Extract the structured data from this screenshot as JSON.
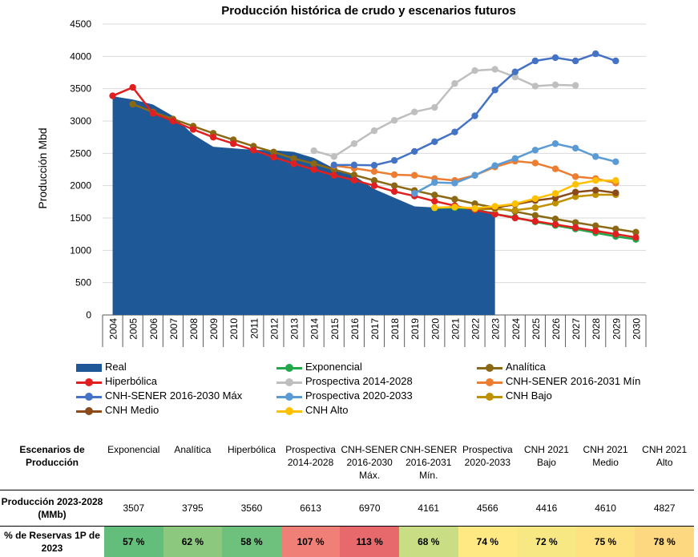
{
  "chart_data": {
    "type": "line",
    "title": "Producción histórica de crudo y escenarios futuros",
    "xlabel": "",
    "ylabel": "Producción Mbd",
    "ylim": [
      0,
      4500
    ],
    "yticks": [
      "0",
      "500",
      "1000",
      "1500",
      "2000",
      "2500",
      "3000",
      "3500",
      "4000",
      "4500"
    ],
    "categories": [
      "2004",
      "2005",
      "2006",
      "2007",
      "2008",
      "2009",
      "2010",
      "2011",
      "2012",
      "2013",
      "2014",
      "2015",
      "2016",
      "2017",
      "2018",
      "2019",
      "2020",
      "2021",
      "2022",
      "2023",
      "2024",
      "2025",
      "2026",
      "2027",
      "2028",
      "2029",
      "2030"
    ],
    "grid": true,
    "legend_position": "bottom",
    "series": [
      {
        "name": "Real",
        "kind": "area",
        "color": "#1f5896",
        "x": [
          "2004",
          "2005",
          "2006",
          "2007",
          "2008",
          "2009",
          "2010",
          "2011",
          "2012",
          "2013",
          "2014",
          "2015",
          "2016",
          "2017",
          "2018",
          "2019",
          "2020",
          "2021",
          "2022",
          "2023"
        ],
        "values": [
          3383,
          3333,
          3256,
          3076,
          2792,
          2601,
          2577,
          2553,
          2548,
          2522,
          2428,
          2267,
          2154,
          1948,
          1813,
          1679,
          1663,
          1689,
          1632,
          1590
        ]
      },
      {
        "name": "Exponencial",
        "kind": "line",
        "color": "#22a84a",
        "x": [
          "2020",
          "2021",
          "2022",
          "2023",
          "2024",
          "2025",
          "2026",
          "2027",
          "2028",
          "2029",
          "2030"
        ],
        "values": [
          1655,
          1660,
          1640,
          1560,
          1510,
          1440,
          1385,
          1330,
          1270,
          1215,
          1170
        ]
      },
      {
        "name": "Analítica",
        "kind": "line",
        "color": "#8b6914",
        "x": [
          "2005",
          "2006",
          "2007",
          "2008",
          "2009",
          "2010",
          "2011",
          "2012",
          "2013",
          "2014",
          "2015",
          "2016",
          "2017",
          "2018",
          "2019",
          "2020",
          "2021",
          "2022",
          "2023",
          "2024",
          "2025",
          "2026",
          "2027",
          "2028",
          "2029",
          "2030"
        ],
        "values": [
          3260,
          3140,
          3030,
          2920,
          2810,
          2710,
          2610,
          2520,
          2420,
          2340,
          2250,
          2165,
          2080,
          2000,
          1925,
          1855,
          1790,
          1720,
          1660,
          1600,
          1540,
          1485,
          1430,
          1380,
          1330,
          1280
        ]
      },
      {
        "name": "Hiperbólica",
        "kind": "line",
        "color": "#e02020",
        "x": [
          "2004",
          "2005",
          "2006",
          "2007",
          "2008",
          "2009",
          "2010",
          "2011",
          "2012",
          "2013",
          "2014",
          "2015",
          "2016",
          "2017",
          "2018",
          "2019",
          "2020",
          "2021",
          "2022",
          "2023",
          "2024",
          "2025",
          "2026",
          "2027",
          "2028",
          "2029",
          "2030"
        ],
        "values": [
          3390,
          3520,
          3120,
          3000,
          2870,
          2750,
          2650,
          2550,
          2440,
          2340,
          2250,
          2160,
          2085,
          2000,
          1910,
          1840,
          1760,
          1690,
          1625,
          1560,
          1500,
          1450,
          1400,
          1350,
          1300,
          1250,
          1200
        ]
      },
      {
        "name": "Prospectiva 2014-2028",
        "kind": "line",
        "color": "#bfbfbf",
        "x": [
          "2014",
          "2015",
          "2016",
          "2017",
          "2018",
          "2019",
          "2020",
          "2021",
          "2022",
          "2023",
          "2024",
          "2025",
          "2026",
          "2027"
        ],
        "values": [
          2540,
          2450,
          2650,
          2850,
          3010,
          3140,
          3210,
          3580,
          3780,
          3800,
          3680,
          3540,
          3560,
          3550
        ]
      },
      {
        "name": "CNH-SENER 2016-2031 Mín",
        "kind": "line",
        "color": "#ed7d31",
        "x": [
          "2015",
          "2016",
          "2017",
          "2018",
          "2019",
          "2020",
          "2021",
          "2022",
          "2023",
          "2024",
          "2025",
          "2026",
          "2027",
          "2028",
          "2029"
        ],
        "values": [
          2310,
          2270,
          2220,
          2170,
          2160,
          2110,
          2080,
          2160,
          2290,
          2380,
          2350,
          2260,
          2140,
          2110,
          2040
        ]
      },
      {
        "name": "CNH-SENER 2016-2030 Máx",
        "kind": "line",
        "color": "#4472c4",
        "x": [
          "2015",
          "2016",
          "2017",
          "2018",
          "2019",
          "2020",
          "2021",
          "2022",
          "2023",
          "2024",
          "2025",
          "2026",
          "2027",
          "2028",
          "2029"
        ],
        "values": [
          2320,
          2320,
          2315,
          2390,
          2530,
          2680,
          2830,
          3080,
          3480,
          3760,
          3930,
          3980,
          3930,
          4040,
          3930
        ]
      },
      {
        "name": "Prospectiva 2020-2033",
        "kind": "line",
        "color": "#5b9bd5",
        "x": [
          "2019",
          "2020",
          "2021",
          "2022",
          "2023",
          "2024",
          "2025",
          "2026",
          "2027",
          "2028",
          "2029"
        ],
        "values": [
          1880,
          2050,
          2040,
          2160,
          2310,
          2420,
          2550,
          2650,
          2580,
          2450,
          2370
        ]
      },
      {
        "name": "CNH Bajo",
        "kind": "line",
        "color": "#bf9000",
        "x": [
          "2022",
          "2023",
          "2024",
          "2025",
          "2026",
          "2027",
          "2028",
          "2029"
        ],
        "values": [
          1640,
          1640,
          1620,
          1660,
          1730,
          1830,
          1860,
          1860
        ]
      },
      {
        "name": "CNH Medio",
        "kind": "line",
        "color": "#8a4a1a",
        "x": [
          "2022",
          "2023",
          "2024",
          "2025",
          "2026",
          "2027",
          "2028",
          "2029"
        ],
        "values": [
          1650,
          1660,
          1710,
          1770,
          1810,
          1900,
          1930,
          1890
        ]
      },
      {
        "name": "CNH Alto",
        "kind": "line",
        "color": "#ffc000",
        "x": [
          "2020",
          "2021",
          "2022",
          "2023",
          "2024",
          "2025",
          "2026",
          "2027",
          "2028",
          "2029"
        ],
        "values": [
          1660,
          1670,
          1650,
          1680,
          1720,
          1800,
          1880,
          2020,
          2080,
          2080
        ]
      }
    ]
  },
  "table": {
    "header_label": "Escenarios de Producción",
    "columns": [
      "Exponencial",
      "Analítica",
      "Hiperbólica",
      "Prospectiva 2014-2028",
      "CNH-SENER 2016-2030 Máx.",
      "CNH-SENER 2016-2031 Mín.",
      "Prospectiva 2020-2033",
      "CNH 2021 Bajo",
      "CNH 2021 Medio",
      "CNH 2021 Alto"
    ],
    "production_label": "Producción 2023-2028 (MMb)",
    "production": [
      "3507",
      "3795",
      "3560",
      "6613",
      "6970",
      "4161",
      "4566",
      "4416",
      "4610",
      "4827"
    ],
    "reserves_label": "% de Reservas 1P de 2023",
    "reserves": [
      "57 %",
      "62 %",
      "58 %",
      "107 %",
      "113 %",
      "68 %",
      "74 %",
      "72 %",
      "75 %",
      "78 %"
    ],
    "reserve_colors": [
      "#63be7b",
      "#8cc87e",
      "#6dc17c",
      "#f08077",
      "#e8696b",
      "#c9de84",
      "#fee983",
      "#f7e884",
      "#fee282",
      "#fed880"
    ]
  }
}
